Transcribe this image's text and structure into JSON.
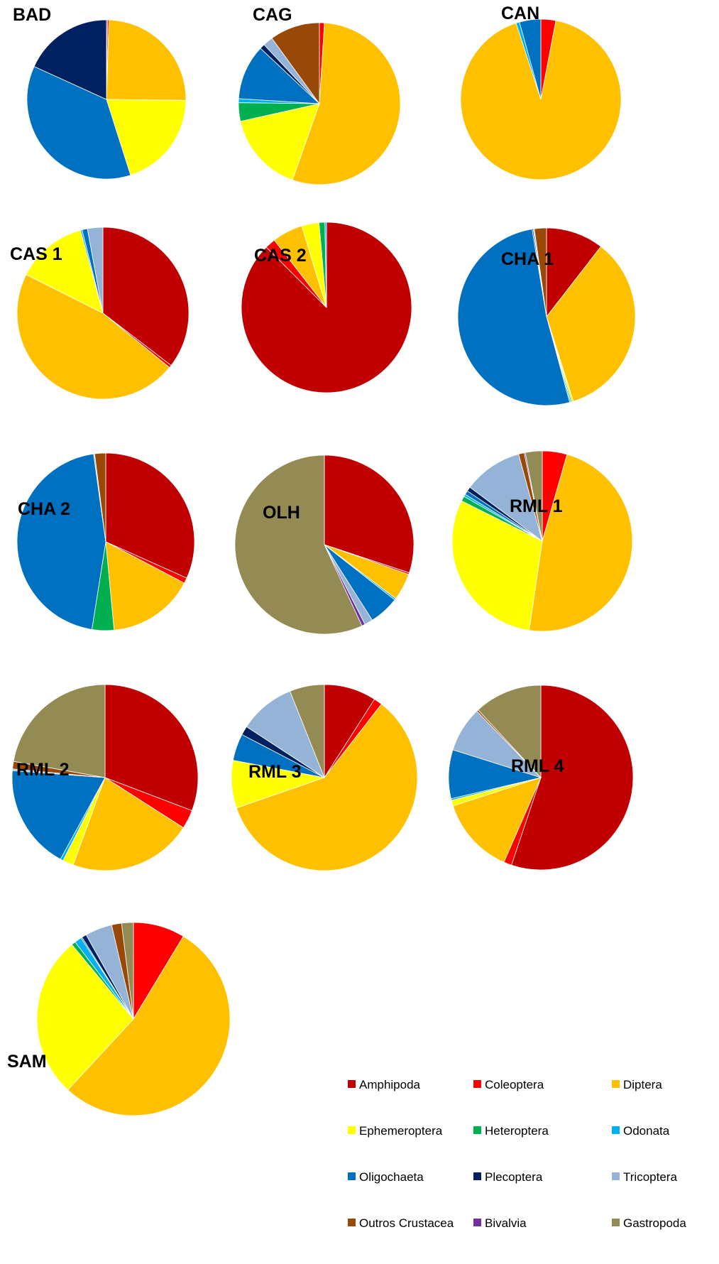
{
  "legend": {
    "items": [
      {
        "key": "amphipoda",
        "label": "Amphipoda",
        "color": "#C00000"
      },
      {
        "key": "coleoptera",
        "label": "Coleoptera",
        "color": "#FF0000"
      },
      {
        "key": "diptera",
        "label": "Diptera",
        "color": "#FFC000"
      },
      {
        "key": "ephemeroptera",
        "label": "Ephemeroptera",
        "color": "#FFFF00"
      },
      {
        "key": "heteroptera",
        "label": "Heteroptera",
        "color": "#00B050"
      },
      {
        "key": "odonata",
        "label": "Odonata",
        "color": "#00B0F0"
      },
      {
        "key": "oligochaeta",
        "label": "Oligochaeta",
        "color": "#0070C0"
      },
      {
        "key": "plecoptera",
        "label": "Plecoptera",
        "color": "#002060"
      },
      {
        "key": "tricoptera",
        "label": "Tricoptera",
        "color": "#95B3D7"
      },
      {
        "key": "outros_crustacea",
        "label": "Outros Crustacea",
        "color": "#984807"
      },
      {
        "key": "bivalvia",
        "label": "Bivalvia",
        "color": "#7030A0"
      },
      {
        "key": "gastropoda",
        "label": "Gastropoda",
        "color": "#948A54"
      }
    ]
  },
  "chart_data": [
    {
      "type": "pie",
      "title": "BAD",
      "categories": [
        "Amphipoda",
        "Coleoptera",
        "Diptera",
        "Ephemeroptera",
        "Heteroptera",
        "Odonata",
        "Oligochaeta",
        "Plecoptera",
        "Tricoptera",
        "Outros Crustacea",
        "Bivalvia",
        "Gastropoda"
      ],
      "values": [
        0.2,
        0.3,
        24.7,
        19.9,
        0,
        0,
        36.7,
        18.2,
        0,
        0,
        0,
        0
      ]
    },
    {
      "type": "pie",
      "title": "CAG",
      "categories": [
        "Amphipoda",
        "Coleoptera",
        "Diptera",
        "Ephemeroptera",
        "Heteroptera",
        "Odonata",
        "Oligochaeta",
        "Plecoptera",
        "Tricoptera",
        "Outros Crustacea",
        "Bivalvia",
        "Gastropoda"
      ],
      "values": [
        0,
        1.0,
        54.4,
        16.1,
        3.7,
        0.8,
        11.0,
        1.0,
        2.0,
        10.0,
        0,
        0
      ]
    },
    {
      "type": "pie",
      "title": "CAN",
      "categories": [
        "Amphipoda",
        "Coleoptera",
        "Diptera",
        "Ephemeroptera",
        "Heteroptera",
        "Odonata",
        "Oligochaeta",
        "Plecoptera",
        "Tricoptera",
        "Outros Crustacea",
        "Bivalvia",
        "Gastropoda"
      ],
      "values": [
        0,
        3.0,
        92.0,
        0,
        0,
        0.7,
        4.3,
        0,
        0,
        0,
        0,
        0
      ]
    },
    {
      "type": "pie",
      "title": "CAS 1",
      "categories": [
        "Amphipoda",
        "Coleoptera",
        "Diptera",
        "Ephemeroptera",
        "Heteroptera",
        "Odonata",
        "Oligochaeta",
        "Plecoptera",
        "Tricoptera",
        "Outros Crustacea",
        "Bivalvia",
        "Gastropoda"
      ],
      "values": [
        35.4,
        0.5,
        46.5,
        13.4,
        0,
        0.3,
        1.0,
        0,
        2.9,
        0,
        0,
        0
      ]
    },
    {
      "type": "pie",
      "title": "CAS 2",
      "categories": [
        "Amphipoda",
        "Coleoptera",
        "Diptera",
        "Ephemeroptera",
        "Heteroptera",
        "Odonata",
        "Oligochaeta",
        "Plecoptera",
        "Tricoptera",
        "Outros Crustacea",
        "Bivalvia",
        "Gastropoda"
      ],
      "values": [
        87.5,
        2.0,
        5.8,
        3.3,
        1.1,
        0.3,
        0,
        0,
        0,
        0,
        0,
        0
      ]
    },
    {
      "type": "pie",
      "title": "CHA 1",
      "categories": [
        "Amphipoda",
        "Coleoptera",
        "Diptera",
        "Ephemeroptera",
        "Heteroptera",
        "Odonata",
        "Oligochaeta",
        "Plecoptera",
        "Tricoptera",
        "Outros Crustacea",
        "Bivalvia",
        "Gastropoda"
      ],
      "values": [
        10.5,
        0,
        34.6,
        0.3,
        0.2,
        0.2,
        51.6,
        0.2,
        0.2,
        2.2,
        0,
        0
      ]
    },
    {
      "type": "pie",
      "title": "CHA 2",
      "categories": [
        "Amphipoda",
        "Coleoptera",
        "Diptera",
        "Ephemeroptera",
        "Heteroptera",
        "Odonata",
        "Oligochaeta",
        "Plecoptera",
        "Tricoptera",
        "Outros Crustacea",
        "Bivalvia",
        "Gastropoda"
      ],
      "values": [
        31.7,
        1.0,
        15.8,
        0,
        4.0,
        0,
        45.3,
        0,
        0.2,
        2.0,
        0,
        0
      ]
    },
    {
      "type": "pie",
      "title": "OLH",
      "categories": [
        "Amphipoda",
        "Coleoptera",
        "Diptera",
        "Ephemeroptera",
        "Heteroptera",
        "Odonata",
        "Oligochaeta",
        "Plecoptera",
        "Tricoptera",
        "Outros Crustacea",
        "Bivalvia",
        "Gastropoda"
      ],
      "values": [
        30.1,
        0.3,
        4.9,
        0,
        0,
        0.3,
        5.4,
        0,
        1.5,
        0,
        0.6,
        56.9
      ]
    },
    {
      "type": "pie",
      "title": "RML 1",
      "categories": [
        "Amphipoda",
        "Coleoptera",
        "Diptera",
        "Ephemeroptera",
        "Heteroptera",
        "Odonata",
        "Oligochaeta",
        "Plecoptera",
        "Tricoptera",
        "Outros Crustacea",
        "Bivalvia",
        "Gastropoda"
      ],
      "values": [
        0,
        4.4,
        47.5,
        29.8,
        0.9,
        0.4,
        0.7,
        0.8,
        10.5,
        1.0,
        0.2,
        3.0
      ]
    },
    {
      "type": "pie",
      "title": "RML 2",
      "categories": [
        "Amphipoda",
        "Coleoptera",
        "Diptera",
        "Ephemeroptera",
        "Heteroptera",
        "Odonata",
        "Oligochaeta",
        "Plecoptera",
        "Tricoptera",
        "Outros Crustacea",
        "Bivalvia",
        "Gastropoda"
      ],
      "values": [
        30.9,
        3.3,
        21.6,
        1.9,
        0,
        0.5,
        18.3,
        0,
        0.3,
        1.3,
        0,
        22.3
      ]
    },
    {
      "type": "pie",
      "title": "RML 3",
      "categories": [
        "Amphipoda",
        "Coleoptera",
        "Diptera",
        "Ephemeroptera",
        "Heteroptera",
        "Odonata",
        "Oligochaeta",
        "Plecoptera",
        "Tricoptera",
        "Outros Crustacea",
        "Bivalvia",
        "Gastropoda"
      ],
      "values": [
        9.3,
        1.5,
        60.7,
        8.5,
        0,
        0,
        4.8,
        1.6,
        10.0,
        0,
        0,
        6.2
      ]
    },
    {
      "type": "pie",
      "title": "RML 4",
      "categories": [
        "Amphipoda",
        "Coleoptera",
        "Diptera",
        "Ephemeroptera",
        "Heteroptera",
        "Odonata",
        "Oligochaeta",
        "Plecoptera",
        "Tricoptera",
        "Outros Crustacea",
        "Bivalvia",
        "Gastropoda"
      ],
      "values": [
        55.6,
        1.4,
        13.6,
        1.0,
        0,
        0.3,
        8.6,
        0,
        8.0,
        0.3,
        0,
        12.0
      ]
    },
    {
      "type": "pie",
      "title": "SAM",
      "categories": [
        "Amphipoda",
        "Coleoptera",
        "Diptera",
        "Ephemeroptera",
        "Heteroptera",
        "Odonata",
        "Oligochaeta",
        "Plecoptera",
        "Tricoptera",
        "Outros Crustacea",
        "Bivalvia",
        "Gastropoda"
      ],
      "values": [
        0,
        8.8,
        54.2,
        27.6,
        0.7,
        1.2,
        0.2,
        0.8,
        4.6,
        1.7,
        0,
        2.0
      ]
    }
  ]
}
